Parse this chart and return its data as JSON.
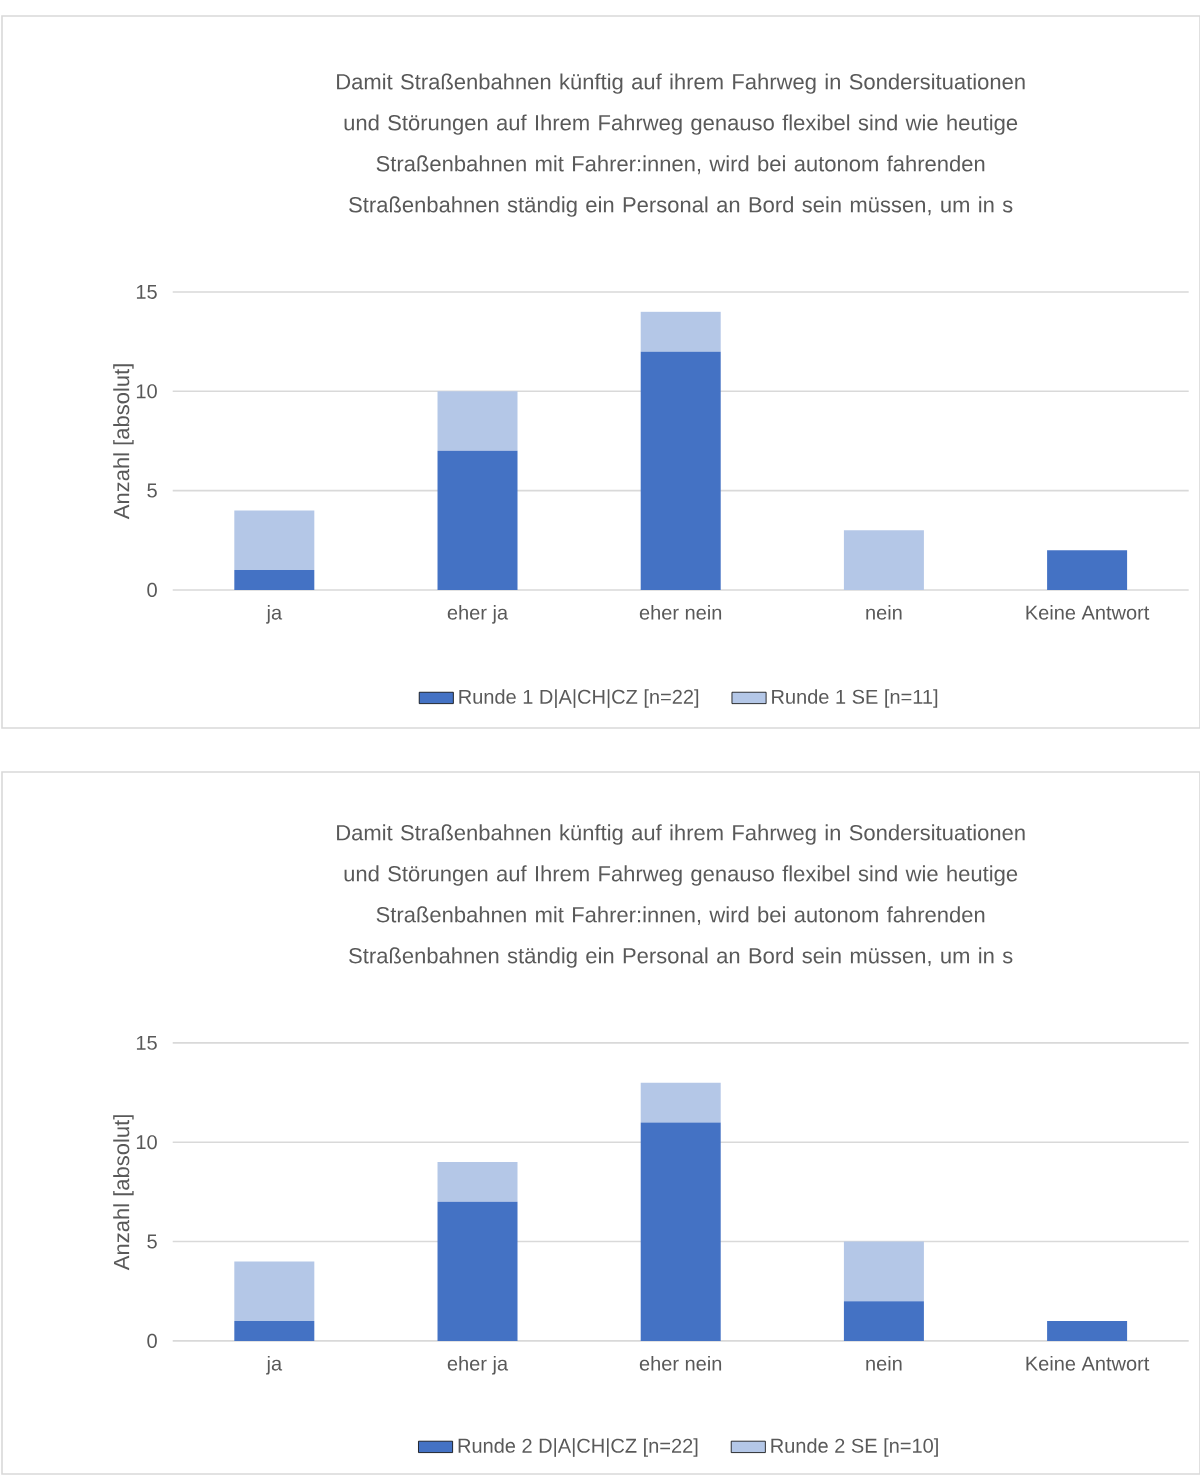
{
  "chart_data": [
    {
      "type": "bar",
      "stacked": true,
      "title": "Damit Straßenbahnen künftig auf ihrem Fahrweg in Sondersituationen und Störungen auf Ihrem Fahrweg genauso flexibel sind wie heutige Straßenbahnen mit Fahrer:innen, wird bei autonom fahrenden Straßenbahnen ständig ein Personal an Bord sein müssen, um in s",
      "ylabel": "Anzahl [absolut]",
      "categories": [
        "ja",
        "eher ja",
        "eher nein",
        "nein",
        "Keine Antwort"
      ],
      "ylim": [
        0,
        15
      ],
      "yticks": [
        0,
        5,
        10,
        15
      ],
      "grid": "y",
      "legend": "bottom",
      "series": [
        {
          "name": "Runde 1 D|A|CH|CZ [n=22]",
          "color": "#4472c4",
          "values": [
            1,
            7,
            12,
            0,
            2
          ]
        },
        {
          "name": "Runde 1 SE [n=11]",
          "color": "#b4c7e7",
          "values": [
            3,
            3,
            2,
            3,
            0
          ]
        }
      ]
    },
    {
      "type": "bar",
      "stacked": true,
      "title": "Damit Straßenbahnen künftig auf ihrem Fahrweg in Sondersituationen und Störungen auf Ihrem Fahrweg genauso flexibel sind wie heutige Straßenbahnen mit Fahrer:innen, wird bei autonom fahrenden Straßenbahnen ständig ein Personal an Bord sein müssen, um in s",
      "ylabel": "Anzahl [absolut]",
      "categories": [
        "ja",
        "eher ja",
        "eher nein",
        "nein",
        "Keine Antwort"
      ],
      "ylim": [
        0,
        15
      ],
      "yticks": [
        0,
        5,
        10,
        15
      ],
      "grid": "y",
      "legend": "bottom",
      "series": [
        {
          "name": "Runde 2 D|A|CH|CZ [n=22]",
          "color": "#4472c4",
          "values": [
            1,
            7,
            11,
            2,
            1
          ]
        },
        {
          "name": "Runde 2 SE [n=10]",
          "color": "#b4c7e7",
          "values": [
            3,
            2,
            2,
            3,
            0
          ]
        }
      ]
    }
  ]
}
